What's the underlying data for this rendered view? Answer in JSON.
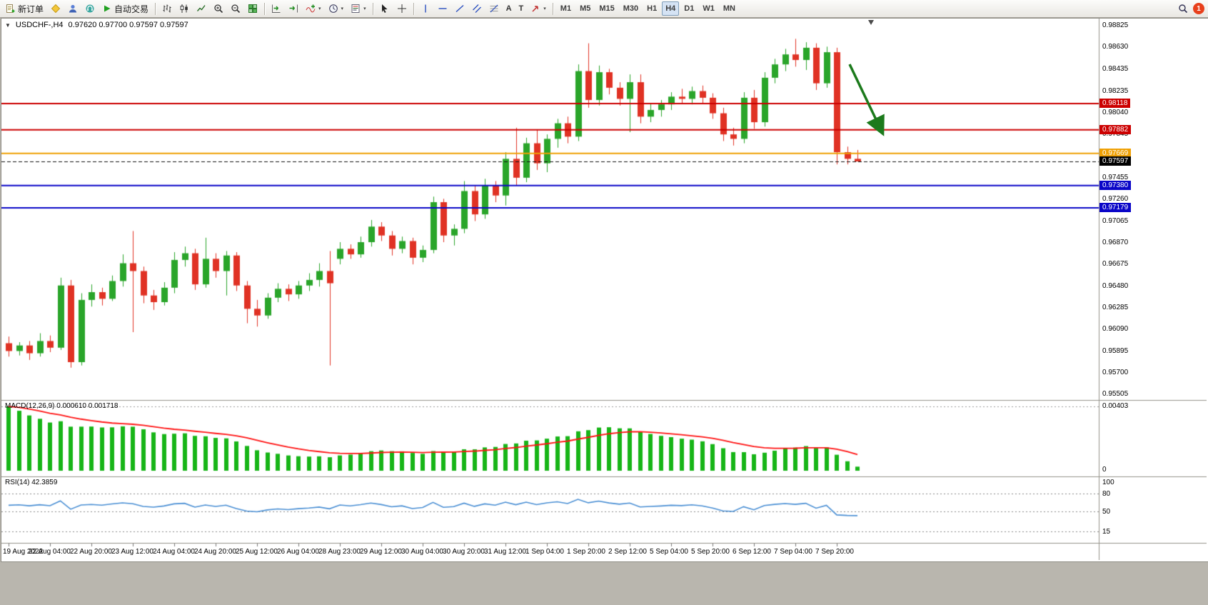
{
  "toolbar": {
    "new_order_label": "新订单",
    "autotrading_label": "自动交易",
    "timeframes": [
      "M1",
      "M5",
      "M15",
      "M30",
      "H1",
      "H4",
      "D1",
      "W1",
      "MN"
    ],
    "active_timeframe": "H4",
    "notification_count": "1"
  },
  "chart": {
    "title_symbol": "USDCHF-,H4",
    "title_ohlc": "0.97620 0.97700 0.97597 0.97597",
    "colors": {
      "up": "#2aa52a",
      "down": "#e03224",
      "macd_hist": "#17b517",
      "macd_signal": "#ff1414",
      "rsi_line": "#4a8fd4",
      "line_red": "#cc0000",
      "line_orange": "#efa004",
      "line_blue": "#0a06c8"
    },
    "price_scale_labels": [
      "0.98825",
      "0.98630",
      "0.98435",
      "0.98235",
      "0.98040",
      "0.97845",
      "0.97455",
      "0.97260",
      "0.97065",
      "0.96870",
      "0.96675",
      "0.96480",
      "0.96285",
      "0.96090",
      "0.95895",
      "0.95700",
      "0.95505"
    ],
    "horizontal_lines": [
      {
        "label": "0.98118",
        "value": 0.98118,
        "color": "#cc0000"
      },
      {
        "label": "0.97882",
        "value": 0.97882,
        "color": "#cc0000"
      },
      {
        "label": "0.97669",
        "value": 0.97669,
        "color": "#efa004"
      },
      {
        "label": "0.97380",
        "value": 0.9738,
        "color": "#0a06c8"
      },
      {
        "label": "0.97179",
        "value": 0.97179,
        "color": "#0a06c8"
      }
    ],
    "current_price": {
      "label": "0.97597",
      "value": 0.97597
    },
    "time_labels": [
      "19 Aug 2022",
      "22 Aug 04:00",
      "22 Aug 20:00",
      "23 Aug 12:00",
      "24 Aug 04:00",
      "24 Aug 20:00",
      "25 Aug 12:00",
      "26 Aug 04:00",
      "28 Aug 23:00",
      "29 Aug 12:00",
      "30 Aug 04:00",
      "30 Aug 20:00",
      "31 Aug 12:00",
      "1 Sep 04:00",
      "1 Sep 20:00",
      "2 Sep 12:00",
      "5 Sep 04:00",
      "5 Sep 20:00",
      "6 Sep 12:00",
      "7 Sep 04:00",
      "7 Sep 20:00"
    ],
    "label_every_n_candles": 4,
    "candles": [
      [
        0.9596,
        0.9602,
        0.9584,
        0.9589
      ],
      [
        0.9589,
        0.9597,
        0.9585,
        0.9594
      ],
      [
        0.9594,
        0.9598,
        0.9581,
        0.9587
      ],
      [
        0.9587,
        0.9605,
        0.9584,
        0.9598
      ],
      [
        0.9598,
        0.9603,
        0.9588,
        0.9592
      ],
      [
        0.9592,
        0.9655,
        0.959,
        0.9648
      ],
      [
        0.9648,
        0.9653,
        0.9574,
        0.9579
      ],
      [
        0.9579,
        0.9641,
        0.9576,
        0.9635
      ],
      [
        0.9635,
        0.9649,
        0.9629,
        0.9642
      ],
      [
        0.9642,
        0.9646,
        0.963,
        0.9636
      ],
      [
        0.9636,
        0.9657,
        0.9634,
        0.9652
      ],
      [
        0.9652,
        0.9676,
        0.9647,
        0.9668
      ],
      [
        0.9668,
        0.9697,
        0.9606,
        0.9661
      ],
      [
        0.9661,
        0.9665,
        0.9632,
        0.9639
      ],
      [
        0.9639,
        0.9644,
        0.9626,
        0.9633
      ],
      [
        0.9633,
        0.9651,
        0.963,
        0.9646
      ],
      [
        0.9646,
        0.9678,
        0.9641,
        0.9671
      ],
      [
        0.9671,
        0.9683,
        0.9665,
        0.9677
      ],
      [
        0.9677,
        0.9681,
        0.9644,
        0.9649
      ],
      [
        0.9649,
        0.9691,
        0.9646,
        0.9672
      ],
      [
        0.9672,
        0.9677,
        0.9655,
        0.9661
      ],
      [
        0.9661,
        0.9679,
        0.9639,
        0.9675
      ],
      [
        0.9675,
        0.9678,
        0.9643,
        0.9648
      ],
      [
        0.9648,
        0.9652,
        0.9614,
        0.9627
      ],
      [
        0.9627,
        0.9635,
        0.9611,
        0.9621
      ],
      [
        0.9621,
        0.9641,
        0.9618,
        0.9637
      ],
      [
        0.9637,
        0.965,
        0.9633,
        0.9645
      ],
      [
        0.9645,
        0.9649,
        0.9634,
        0.964
      ],
      [
        0.964,
        0.9652,
        0.9636,
        0.9648
      ],
      [
        0.9648,
        0.9659,
        0.9643,
        0.9653
      ],
      [
        0.9653,
        0.9668,
        0.9647,
        0.9661
      ],
      [
        0.9661,
        0.9679,
        0.9576,
        0.965
      ],
      [
        0.9672,
        0.9687,
        0.9667,
        0.9681
      ],
      [
        0.9681,
        0.9685,
        0.9672,
        0.9676
      ],
      [
        0.9676,
        0.9692,
        0.9673,
        0.9687
      ],
      [
        0.9687,
        0.9707,
        0.9683,
        0.9701
      ],
      [
        0.9701,
        0.9705,
        0.9688,
        0.9693
      ],
      [
        0.9693,
        0.9697,
        0.9675,
        0.9681
      ],
      [
        0.9681,
        0.9692,
        0.9677,
        0.9688
      ],
      [
        0.9688,
        0.9691,
        0.9667,
        0.9673
      ],
      [
        0.9673,
        0.9684,
        0.9669,
        0.968
      ],
      [
        0.968,
        0.9728,
        0.9677,
        0.9723
      ],
      [
        0.9723,
        0.9726,
        0.9687,
        0.9693
      ],
      [
        0.9693,
        0.9703,
        0.9684,
        0.9699
      ],
      [
        0.9699,
        0.9742,
        0.9695,
        0.9733
      ],
      [
        0.9733,
        0.9738,
        0.9706,
        0.9712
      ],
      [
        0.9712,
        0.9744,
        0.9708,
        0.9738
      ],
      [
        0.9738,
        0.9742,
        0.9723,
        0.9729
      ],
      [
        0.9729,
        0.9768,
        0.972,
        0.9762
      ],
      [
        0.9762,
        0.979,
        0.9738,
        0.9745
      ],
      [
        0.9745,
        0.9781,
        0.9741,
        0.9776
      ],
      [
        0.9776,
        0.9788,
        0.9752,
        0.9758
      ],
      [
        0.9758,
        0.9784,
        0.975,
        0.978
      ],
      [
        0.978,
        0.9798,
        0.9772,
        0.9794
      ],
      [
        0.9794,
        0.98,
        0.9776,
        0.9782
      ],
      [
        0.9782,
        0.9847,
        0.9778,
        0.9841
      ],
      [
        0.9841,
        0.9866,
        0.9808,
        0.9815
      ],
      [
        0.9815,
        0.9846,
        0.981,
        0.984
      ],
      [
        0.984,
        0.9843,
        0.982,
        0.9826
      ],
      [
        0.9826,
        0.9831,
        0.981,
        0.9816
      ],
      [
        0.9816,
        0.9838,
        0.9786,
        0.9831
      ],
      [
        0.9831,
        0.9838,
        0.9794,
        0.98
      ],
      [
        0.98,
        0.9812,
        0.9795,
        0.9806
      ],
      [
        0.9806,
        0.9815,
        0.98,
        0.9811
      ],
      [
        0.9811,
        0.9822,
        0.9806,
        0.9818
      ],
      [
        0.9818,
        0.9825,
        0.9812,
        0.9816
      ],
      [
        0.9816,
        0.9827,
        0.9811,
        0.9823
      ],
      [
        0.9823,
        0.9828,
        0.9812,
        0.9817
      ],
      [
        0.9817,
        0.9821,
        0.9798,
        0.9803
      ],
      [
        0.9803,
        0.9808,
        0.9778,
        0.9784
      ],
      [
        0.9784,
        0.979,
        0.9774,
        0.978
      ],
      [
        0.978,
        0.9822,
        0.9776,
        0.9817
      ],
      [
        0.9817,
        0.9824,
        0.9789,
        0.9795
      ],
      [
        0.9795,
        0.984,
        0.9791,
        0.9835
      ],
      [
        0.9835,
        0.9852,
        0.983,
        0.9847
      ],
      [
        0.9847,
        0.9861,
        0.9841,
        0.9856
      ],
      [
        0.9856,
        0.987,
        0.9845,
        0.9851
      ],
      [
        0.9851,
        0.9867,
        0.9842,
        0.9862
      ],
      [
        0.9862,
        0.9866,
        0.9824,
        0.983
      ],
      [
        0.983,
        0.9863,
        0.9826,
        0.9858
      ],
      [
        0.9858,
        0.9862,
        0.9757,
        0.9768
      ],
      [
        0.9768,
        0.9773,
        0.9757,
        0.9762
      ],
      [
        0.9762,
        0.977,
        0.97597,
        0.97597
      ]
    ]
  },
  "macd": {
    "header": "MACD(12,26,9) 0.000610 0.001718",
    "scale_max_label": "0.00403",
    "scale_min_label": "0"
  },
  "rsi": {
    "header": "RSI(14) 42.3859",
    "period": 14,
    "scale_labels": [
      "100",
      "80",
      "50",
      "15"
    ],
    "levels": [
      80,
      50,
      15
    ]
  }
}
